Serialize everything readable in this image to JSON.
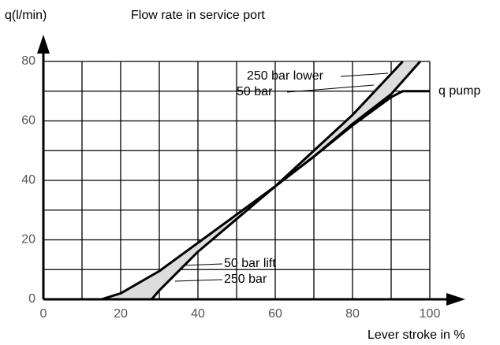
{
  "chart_data": {
    "type": "line",
    "title": "Flow rate in service port",
    "y_label": "q(l/min)",
    "x_label": "Lever stroke in %",
    "xlim": [
      0,
      100
    ],
    "ylim": [
      0,
      80
    ],
    "xticks": [
      0,
      20,
      40,
      60,
      80,
      100
    ],
    "yticks": [
      0,
      20,
      40,
      60,
      80
    ],
    "xgrid": [
      0,
      10,
      20,
      30,
      40,
      50,
      60,
      70,
      80,
      90,
      100
    ],
    "ygrid": [
      0,
      10,
      20,
      30,
      40,
      50,
      60,
      70,
      80
    ],
    "grid": true,
    "series": [
      {
        "name": "50 bar lift",
        "color": "#000000",
        "x": [
          15,
          20,
          30,
          40,
          50,
          60
        ],
        "values": [
          0,
          2,
          9.5,
          19,
          28.5,
          38
        ]
      },
      {
        "name": "250 bar",
        "color": "#000000",
        "x": [
          28,
          30,
          40,
          50,
          60
        ],
        "values": [
          0,
          3,
          16,
          27,
          38
        ]
      },
      {
        "name": "250 bar lower",
        "color": "#000000",
        "x": [
          60,
          70,
          80,
          93
        ],
        "values": [
          38,
          50,
          62,
          80
        ]
      },
      {
        "name": "50 bar",
        "color": "#000000",
        "x": [
          60,
          70,
          80,
          90,
          97.5
        ],
        "values": [
          38,
          48,
          59,
          69,
          80
        ]
      },
      {
        "name": "q pump",
        "color": "#000000",
        "x": [
          60,
          70,
          80,
          90,
          93,
          95,
          100
        ],
        "values": [
          38,
          48,
          58.5,
          68,
          70,
          70,
          70
        ]
      }
    ]
  }
}
